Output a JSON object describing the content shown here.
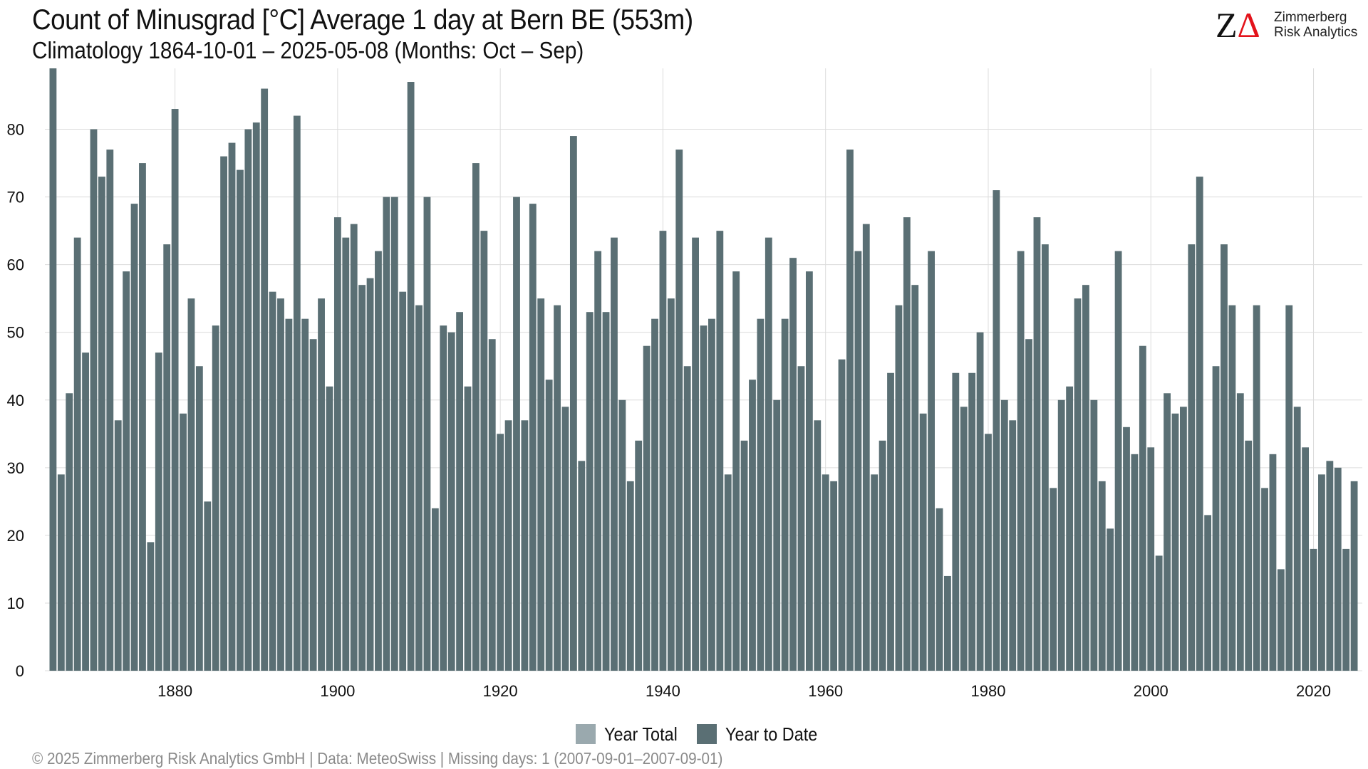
{
  "header": {
    "title": "Count of Minusgrad [°C] Average 1 day at Bern  BE (553m)",
    "subtitle": "Climatology 1864-10-01 – 2025-05-08 (Months: Oct – Sep)"
  },
  "logo": {
    "mark_z": "Z",
    "mark_delta": "Δ",
    "line1": "Zimmerberg",
    "line2": "Risk Analytics"
  },
  "legend": {
    "items": [
      {
        "label": "Year Total",
        "color": "#9aa9ae"
      },
      {
        "label": "Year to Date",
        "color": "#5a6f74"
      }
    ]
  },
  "footer": {
    "text": "©  2025 Zimmerberg Risk Analytics GmbH | Data: MeteoSwiss | Missing days: 1 (2007-09-01–2007-09-01)"
  },
  "colors": {
    "bar": "#5a6f74",
    "grid": "#dcdcdc"
  },
  "chart_data": {
    "type": "bar",
    "title": "Count of Minusgrad [°C] Average 1 day at Bern  BE (553m)",
    "subtitle": "Climatology 1864-10-01 – 2025-05-08 (Months: Oct – Sep)",
    "xlabel": "",
    "ylabel": "",
    "x_start": 1865,
    "x": [
      1865,
      1866,
      1867,
      1868,
      1869,
      1870,
      1871,
      1872,
      1873,
      1874,
      1875,
      1876,
      1877,
      1878,
      1879,
      1880,
      1881,
      1882,
      1883,
      1884,
      1885,
      1886,
      1887,
      1888,
      1889,
      1890,
      1891,
      1892,
      1893,
      1894,
      1895,
      1896,
      1897,
      1898,
      1899,
      1900,
      1901,
      1902,
      1903,
      1904,
      1905,
      1906,
      1907,
      1908,
      1909,
      1910,
      1911,
      1912,
      1913,
      1914,
      1915,
      1916,
      1917,
      1918,
      1919,
      1920,
      1921,
      1922,
      1923,
      1924,
      1925,
      1926,
      1927,
      1928,
      1929,
      1930,
      1931,
      1932,
      1933,
      1934,
      1935,
      1936,
      1937,
      1938,
      1939,
      1940,
      1941,
      1942,
      1943,
      1944,
      1945,
      1946,
      1947,
      1948,
      1949,
      1950,
      1951,
      1952,
      1953,
      1954,
      1955,
      1956,
      1957,
      1958,
      1959,
      1960,
      1961,
      1962,
      1963,
      1964,
      1965,
      1966,
      1967,
      1968,
      1969,
      1970,
      1971,
      1972,
      1973,
      1974,
      1975,
      1976,
      1977,
      1978,
      1979,
      1980,
      1981,
      1982,
      1983,
      1984,
      1985,
      1986,
      1987,
      1988,
      1989,
      1990,
      1991,
      1992,
      1993,
      1994,
      1995,
      1996,
      1997,
      1998,
      1999,
      2000,
      2001,
      2002,
      2003,
      2004,
      2005,
      2006,
      2007,
      2008,
      2009,
      2010,
      2011,
      2012,
      2013,
      2014,
      2015,
      2016,
      2017,
      2018,
      2019,
      2020,
      2021,
      2022,
      2023,
      2024,
      2025
    ],
    "series": [
      {
        "name": "Year to Date",
        "values": [
          89,
          29,
          41,
          64,
          47,
          80,
          73,
          77,
          37,
          59,
          69,
          75,
          19,
          47,
          63,
          83,
          38,
          55,
          45,
          25,
          51,
          76,
          78,
          74,
          80,
          81,
          86,
          56,
          55,
          52,
          82,
          52,
          49,
          55,
          42,
          67,
          64,
          66,
          57,
          58,
          62,
          70,
          70,
          56,
          87,
          54,
          70,
          24,
          51,
          50,
          53,
          42,
          75,
          65,
          49,
          35,
          37,
          70,
          37,
          69,
          55,
          43,
          54,
          39,
          79,
          31,
          53,
          62,
          53,
          64,
          40,
          28,
          34,
          48,
          52,
          65,
          55,
          77,
          45,
          64,
          51,
          52,
          65,
          29,
          59,
          34,
          43,
          52,
          64,
          40,
          52,
          61,
          45,
          59,
          37,
          29,
          28,
          46,
          77,
          62,
          66,
          29,
          34,
          44,
          54,
          67,
          57,
          38,
          62,
          24,
          14,
          44,
          39,
          44,
          50,
          35,
          71,
          40,
          37,
          62,
          49,
          67,
          63,
          27,
          40,
          42,
          55,
          57,
          40,
          28,
          21,
          62,
          36,
          32,
          48,
          33,
          17,
          41,
          38,
          39,
          63,
          73,
          23,
          45,
          63,
          54,
          41,
          34,
          54,
          27,
          32,
          15,
          54,
          39,
          33,
          18,
          29,
          31,
          30,
          18,
          28
        ]
      }
    ],
    "xticks": [
      1880,
      1900,
      1920,
      1940,
      1960,
      1980,
      2000,
      2020
    ],
    "yticks": [
      0,
      10,
      20,
      30,
      40,
      50,
      60,
      70,
      80
    ],
    "xlim": [
      1864,
      2026
    ],
    "ylim": [
      0,
      89
    ],
    "grid": true,
    "legend_position": "bottom"
  }
}
